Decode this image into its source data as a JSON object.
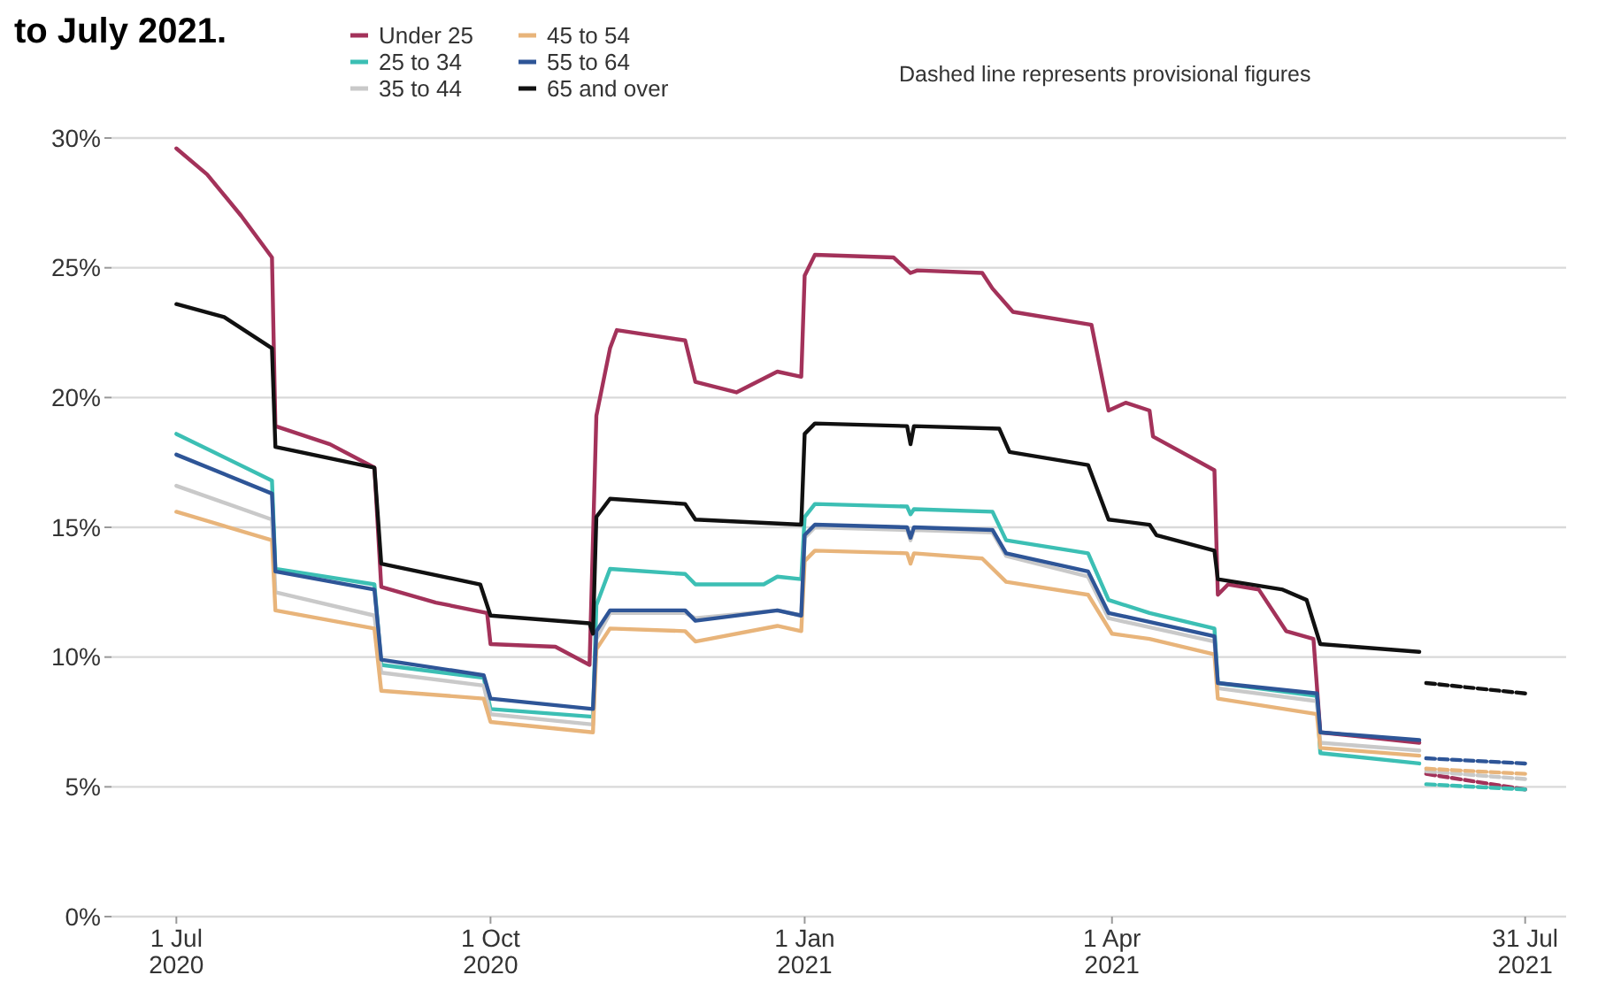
{
  "chart_data": {
    "type": "line",
    "title": "to July 2021.",
    "annotations": [
      "Dashed line represents provisional figures"
    ],
    "xlim": [
      "2020-06-12",
      "2021-08-12"
    ],
    "xticks": [
      {
        "value": "2020-07-01",
        "label": "1 Jul 2020"
      },
      {
        "value": "2020-10-01",
        "label": "1 Oct 2020"
      },
      {
        "value": "2021-01-01",
        "label": "1 Jan 2021"
      },
      {
        "value": "2021-04-01",
        "label": "1 Apr 2021"
      },
      {
        "value": "2021-07-31",
        "label": "31 Jul 2021"
      }
    ],
    "ylim": [
      0,
      30
    ],
    "yticks": [
      {
        "value": 0,
        "label": "0%"
      },
      {
        "value": 5,
        "label": "5%"
      },
      {
        "value": 10,
        "label": "10%"
      },
      {
        "value": 15,
        "label": "15%"
      },
      {
        "value": 20,
        "label": "20%"
      },
      {
        "value": 25,
        "label": "25%"
      },
      {
        "value": 30,
        "label": "30%"
      }
    ],
    "grid": "y",
    "legend": "top",
    "marker": "none",
    "line_style": "solid",
    "series": [
      {
        "name": "Under 25",
        "color": "#a3325a",
        "x": [
          "2020-07-01",
          "2020-07-10",
          "2020-07-20",
          "2020-07-29",
          "2020-07-30",
          "2020-08-15",
          "2020-08-28",
          "2020-08-30",
          "2020-09-15",
          "2020-09-30",
          "2020-10-01",
          "2020-10-20",
          "2020-10-30",
          "2020-11-01",
          "2020-11-05",
          "2020-11-07",
          "2020-11-27",
          "2020-11-30",
          "2020-12-12",
          "2020-12-24",
          "2020-12-31",
          "2021-01-01",
          "2021-01-04",
          "2021-01-27",
          "2021-02-01",
          "2021-02-03",
          "2021-02-22",
          "2021-02-25",
          "2021-03-03",
          "2021-03-26",
          "2021-03-31",
          "2021-04-05",
          "2021-04-12",
          "2021-04-13",
          "2021-05-01",
          "2021-05-02",
          "2021-05-05",
          "2021-05-14",
          "2021-05-22",
          "2021-05-30",
          "2021-06-01",
          "2021-06-30"
        ],
        "values": [
          29.6,
          28.6,
          27.0,
          25.4,
          18.9,
          18.2,
          17.3,
          12.7,
          12.1,
          11.7,
          10.5,
          10.4,
          9.7,
          19.3,
          21.9,
          22.6,
          22.2,
          20.6,
          20.2,
          21.0,
          20.8,
          24.7,
          25.5,
          25.4,
          24.8,
          24.9,
          24.8,
          24.2,
          23.3,
          22.8,
          19.5,
          19.8,
          19.5,
          18.5,
          17.2,
          12.4,
          12.8,
          12.6,
          11.0,
          10.7,
          7.1,
          6.7
        ]
      },
      {
        "name": "25 to 34",
        "color": "#3cbfb4",
        "x": [
          "2020-07-01",
          "2020-07-29",
          "2020-07-30",
          "2020-08-28",
          "2020-08-30",
          "2020-09-29",
          "2020-10-01",
          "2020-10-31",
          "2020-11-01",
          "2020-11-05",
          "2020-11-27",
          "2020-11-30",
          "2020-12-20",
          "2020-12-24",
          "2020-12-31",
          "2021-01-01",
          "2021-01-04",
          "2021-01-31",
          "2021-02-01",
          "2021-02-02",
          "2021-02-25",
          "2021-03-01",
          "2021-03-25",
          "2021-03-31",
          "2021-04-12",
          "2021-05-01",
          "2021-05-02",
          "2021-05-31",
          "2021-06-01",
          "2021-06-30"
        ],
        "values": [
          18.6,
          16.8,
          13.4,
          12.8,
          9.7,
          9.2,
          8.0,
          7.7,
          12.0,
          13.4,
          13.2,
          12.8,
          12.8,
          13.1,
          13.0,
          15.4,
          15.9,
          15.8,
          15.5,
          15.7,
          15.6,
          14.5,
          14.0,
          12.2,
          11.7,
          11.1,
          9.0,
          8.5,
          6.3,
          5.9
        ]
      },
      {
        "name": "35 to 44",
        "color": "#c9c9c9",
        "x": [
          "2020-07-01",
          "2020-07-29",
          "2020-07-30",
          "2020-08-28",
          "2020-08-30",
          "2020-09-29",
          "2020-10-01",
          "2020-10-31",
          "2020-11-01",
          "2020-11-05",
          "2020-11-27",
          "2020-11-30",
          "2020-12-24",
          "2020-12-31",
          "2021-01-01",
          "2021-01-04",
          "2021-01-31",
          "2021-02-01",
          "2021-02-02",
          "2021-02-25",
          "2021-03-01",
          "2021-03-25",
          "2021-03-31",
          "2021-05-01",
          "2021-05-02",
          "2021-05-31",
          "2021-06-01",
          "2021-06-30"
        ],
        "values": [
          16.6,
          15.3,
          12.5,
          11.6,
          9.4,
          8.9,
          7.8,
          7.4,
          10.7,
          11.7,
          11.7,
          11.5,
          11.8,
          11.6,
          14.6,
          15.0,
          14.9,
          14.5,
          14.9,
          14.8,
          13.9,
          13.1,
          11.5,
          10.6,
          8.8,
          8.3,
          6.7,
          6.4
        ]
      },
      {
        "name": "45 to 54",
        "color": "#e8b47a",
        "x": [
          "2020-07-01",
          "2020-07-29",
          "2020-07-30",
          "2020-08-28",
          "2020-08-30",
          "2020-09-29",
          "2020-10-01",
          "2020-10-31",
          "2020-11-01",
          "2020-11-05",
          "2020-11-27",
          "2020-11-30",
          "2020-12-24",
          "2020-12-31",
          "2021-01-01",
          "2021-01-04",
          "2021-01-31",
          "2021-02-01",
          "2021-02-02",
          "2021-02-22",
          "2021-03-01",
          "2021-03-25",
          "2021-04-01",
          "2021-04-12",
          "2021-05-01",
          "2021-05-02",
          "2021-05-31",
          "2021-06-01",
          "2021-06-30"
        ],
        "values": [
          15.6,
          14.5,
          11.8,
          11.1,
          8.7,
          8.4,
          7.5,
          7.1,
          10.3,
          11.1,
          11.0,
          10.6,
          11.2,
          11.0,
          13.7,
          14.1,
          14.0,
          13.6,
          14.0,
          13.8,
          12.9,
          12.4,
          10.9,
          10.7,
          10.1,
          8.4,
          7.8,
          6.5,
          6.2
        ]
      },
      {
        "name": "55 to 64",
        "color": "#2e5597",
        "x": [
          "2020-07-01",
          "2020-07-29",
          "2020-07-30",
          "2020-08-28",
          "2020-08-30",
          "2020-09-29",
          "2020-10-01",
          "2020-10-31",
          "2020-11-01",
          "2020-11-05",
          "2020-11-27",
          "2020-11-30",
          "2020-12-24",
          "2020-12-31",
          "2021-01-01",
          "2021-01-04",
          "2021-01-31",
          "2021-02-01",
          "2021-02-02",
          "2021-02-25",
          "2021-03-01",
          "2021-03-25",
          "2021-03-31",
          "2021-05-01",
          "2021-05-02",
          "2021-05-31",
          "2021-06-01",
          "2021-06-30"
        ],
        "values": [
          17.8,
          16.3,
          13.3,
          12.6,
          9.9,
          9.3,
          8.4,
          8.0,
          11.0,
          11.8,
          11.8,
          11.4,
          11.8,
          11.6,
          14.7,
          15.1,
          15.0,
          14.6,
          15.0,
          14.9,
          14.0,
          13.3,
          11.7,
          10.8,
          9.0,
          8.6,
          7.1,
          6.8
        ]
      },
      {
        "name": "65 and over",
        "color": "#111111",
        "x": [
          "2020-07-01",
          "2020-07-15",
          "2020-07-29",
          "2020-07-30",
          "2020-08-28",
          "2020-08-30",
          "2020-09-28",
          "2020-10-01",
          "2020-10-30",
          "2020-10-31",
          "2020-11-01",
          "2020-11-05",
          "2020-11-27",
          "2020-11-30",
          "2020-12-31",
          "2021-01-01",
          "2021-01-04",
          "2021-01-31",
          "2021-02-01",
          "2021-02-02",
          "2021-02-27",
          "2021-03-02",
          "2021-03-25",
          "2021-03-31",
          "2021-04-12",
          "2021-04-14",
          "2021-05-01",
          "2021-05-02",
          "2021-05-21",
          "2021-05-28",
          "2021-06-01",
          "2021-06-30"
        ],
        "values": [
          23.6,
          23.1,
          21.9,
          18.1,
          17.3,
          13.6,
          12.8,
          11.6,
          11.3,
          10.9,
          15.4,
          16.1,
          15.9,
          15.3,
          15.1,
          18.6,
          19.0,
          18.9,
          18.2,
          18.9,
          18.8,
          17.9,
          17.4,
          15.3,
          15.1,
          14.7,
          14.1,
          13.0,
          12.6,
          12.2,
          10.5,
          10.2
        ]
      },
      {
        "color": "#a3325a",
        "line_style": "dashed",
        "x": [
          "2021-07-02",
          "2021-07-31"
        ],
        "values": [
          5.5,
          4.9
        ]
      },
      {
        "color": "#3cbfb4",
        "line_style": "dashed",
        "x": [
          "2021-07-02",
          "2021-07-31"
        ],
        "values": [
          5.1,
          4.9
        ]
      },
      {
        "color": "#c9c9c9",
        "line_style": "dashed",
        "x": [
          "2021-07-02",
          "2021-07-31"
        ],
        "values": [
          5.6,
          5.3
        ]
      },
      {
        "color": "#e8b47a",
        "line_style": "dashed",
        "x": [
          "2021-07-02",
          "2021-07-31"
        ],
        "values": [
          5.7,
          5.5
        ]
      },
      {
        "color": "#2e5597",
        "line_style": "dashed",
        "x": [
          "2021-07-02",
          "2021-07-31"
        ],
        "values": [
          6.1,
          5.9
        ]
      },
      {
        "color": "#111111",
        "line_style": "dashed",
        "x": [
          "2021-07-02",
          "2021-07-31"
        ],
        "values": [
          9.0,
          8.6
        ]
      }
    ]
  }
}
